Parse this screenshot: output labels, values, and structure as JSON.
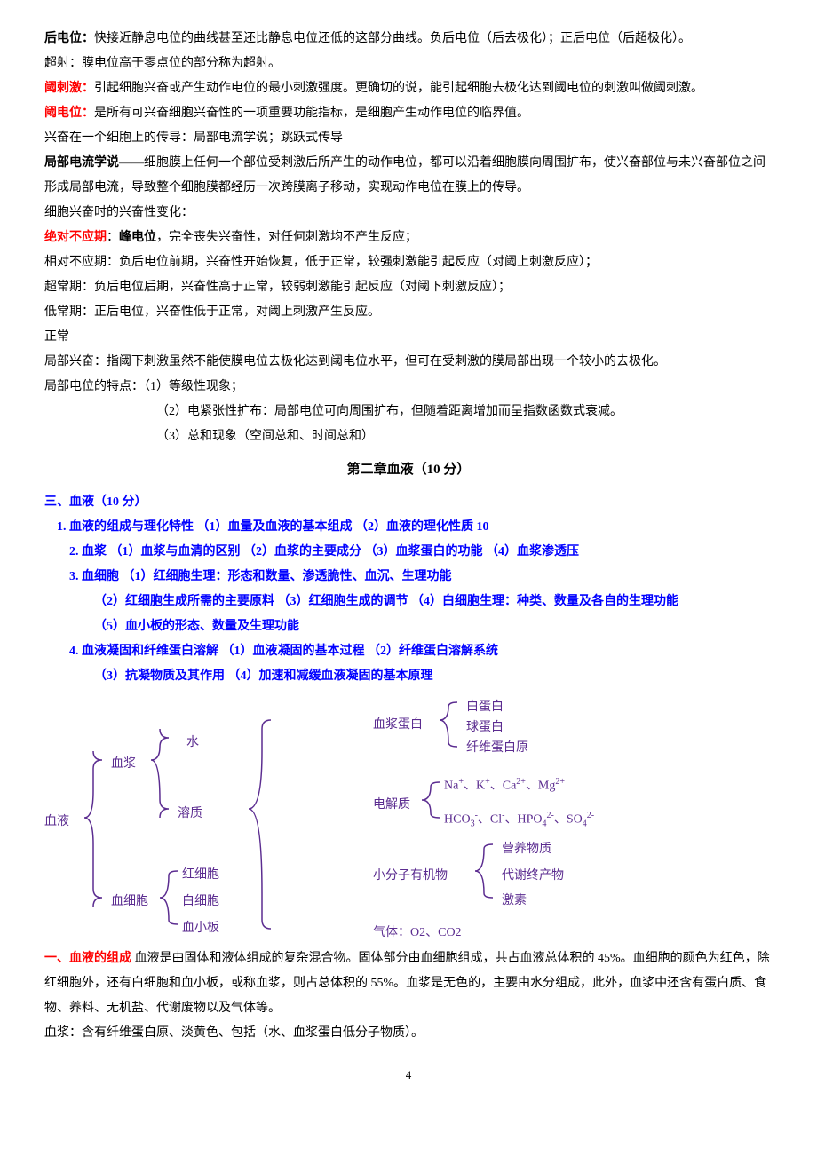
{
  "p1": {
    "t1": "后电位：",
    "t2": "快接近静息电位的曲线甚至还比静息电位还低的这部分曲线。负后电位（后去极化）；正后电位（后超极化）。"
  },
  "p2": "超射：膜电位高于零点位的部分称为超射。",
  "p3": {
    "t1": "阈刺激：",
    "t2": "引起细胞兴奋或产生动作电位的最小刺激强度。更确切的说，能引起细胞去极化达到阈电位的刺激叫做阈刺激。"
  },
  "p4": {
    "t1": "阈电位：",
    "t2": "是所有可兴奋细胞兴奋性的一项重要功能指标，是细胞产生动作电位的临界值。"
  },
  "p5": "兴奋在一个细胞上的传导：局部电流学说；跳跃式传导",
  "p6": {
    "t1": "局部电流学说",
    "t2": "——细胞膜上任何一个部位受刺激后所产生的动作电位，都可以沿着细胞膜向周围扩布，使兴奋部位与未兴奋部位之间形成局部电流，导致整个细胞膜都经历一次跨膜离子移动，实现动作电位在膜上的传导。"
  },
  "p7": "细胞兴奋时的兴奋性变化：",
  "p8": {
    "t1": "绝对不应期",
    "t2": "：",
    "t3": "峰电位",
    "t4": "，完全丧失兴奋性，对任何刺激均不产生反应；"
  },
  "p9": "相对不应期：负后电位前期，兴奋性开始恢复，低于正常，较强刺激能引起反应（对阈上刺激反应）；",
  "p10": "超常期：负后电位后期，兴奋性高于正常，较弱刺激能引起反应（对阈下刺激反应）；",
  "p11": "低常期：正后电位，兴奋性低于正常，对阈上刺激产生反应。",
  "p12": "正常",
  "p13": "局部兴奋：指阈下刺激虽然不能使膜电位去极化达到阈电位水平，但可在受刺激的膜局部出现一个较小的去极化。",
  "p14": "局部电位的特点：（1）等级性现象；",
  "p15": "（2）电紧张性扩布：局部电位可向周围扩布，但随着距离增加而呈指数函数式衰减。",
  "p16": "（3）总和现象（空间总和、时间总和）",
  "chapterTitle": "第二章血液（10 分）",
  "s3": "三、血液（10 分）",
  "s3_1": "1. 血液的组成与理化特性  （1）血量及血液的基本组成  （2）血液的理化性质 10",
  "s3_2": "2. 血浆  （1）血浆与血清的区别  （2）血浆的主要成分  （3）血浆蛋白的功能  （4）血浆渗透压",
  "s3_3": "3. 血细胞  （1）红细胞生理：形态和数量、渗透脆性、血沉、生理功能",
  "s3_3b": "（2）红细胞生成所需的主要原料  （3）红细胞生成的调节  （4）白细胞生理：种类、数量及各自的生理功能",
  "s3_3c": "（5）血小板的形态、数量及生理功能",
  "s3_4": "4. 血液凝固和纤维蛋白溶解  （1）血液凝固的基本过程  （2）纤维蛋白溶解系统",
  "s3_4b": "（3）抗凝物质及其作用  （4）加速和减缓血液凝固的基本原理",
  "diagram": {
    "root": "血液",
    "l1a": "血浆",
    "l1b": "血细胞",
    "l2a": "水",
    "l2b": "溶质",
    "l2c": "红细胞",
    "l2d": "白细胞",
    "l2e": "血小板",
    "l3a": "血浆蛋白",
    "l3b": "电解质",
    "l3c": "小分子有机物",
    "l3d": "气体：O2、CO2",
    "l4a": "白蛋白",
    "l4b": "球蛋白",
    "l4c": "纤维蛋白原",
    "l4d_html": "Na<sup>+</sup>、K<sup>+</sup>、Ca<sup>2+</sup>、Mg<sup>2+</sup>",
    "l4e_html": "HCO<sub>3</sub><sup>-</sup>、Cl<sup>-</sup>、HPO<sub>4</sub><sup>2-</sup>、SO<sub>4</sub><sup>2-</sup>",
    "l4f": "营养物质",
    "l4g": "代谢终产物",
    "l4h": "激素"
  },
  "b1": {
    "t1": "一、血液的组成",
    "t2": " 血液是由固体和液体组成的复杂混合物。固体部分由血细胞组成，共占血液总体积的 45%。血细胞的颜色为红色，除红细胞外，还有白细胞和血小板，或称血浆，则占总体积的 55%。血浆是无色的，主要由水分组成，此外，血浆中还含有蛋白质、食物、养料、无机盐、代谢废物以及气体等。"
  },
  "b2": "血浆：含有纤维蛋白原、淡黄色、包括（水、血浆蛋白低分子物质）。",
  "pageNum": "4",
  "colors": {
    "text": "#000000",
    "red": "#ff0000",
    "blue": "#0000ff",
    "purple": "#5b2c90",
    "bracket": "#5b2c90"
  }
}
